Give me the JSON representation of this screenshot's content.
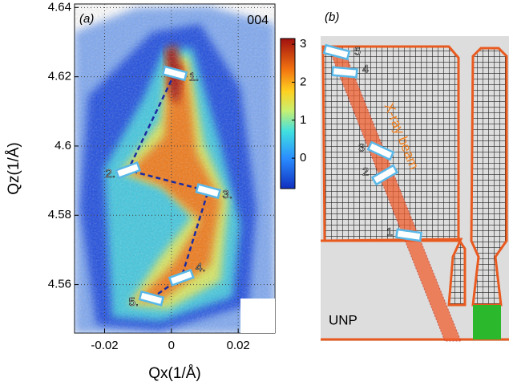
{
  "chart_data": {
    "type": "heatmap",
    "panel_label": "(a)",
    "reflection": "004",
    "xlabel": "Qx(1/Å)",
    "ylabel": "Qz(1/Å)",
    "xlim": [
      -0.029,
      0.031
    ],
    "ylim": [
      4.546,
      4.641
    ],
    "xticks": [
      -0.02,
      0,
      0.02
    ],
    "yticks": [
      4.56,
      4.58,
      4.6,
      4.62,
      4.64
    ],
    "grid": true,
    "colorbar": {
      "lim": [
        -0.8,
        3.15
      ],
      "ticks": [
        0,
        1,
        2,
        3
      ]
    },
    "path": {
      "labels": [
        "1.",
        "2.",
        "3.",
        "4.",
        "5."
      ],
      "x": [
        0.001,
        -0.013,
        0.011,
        0.003,
        -0.006
      ],
      "y": [
        4.621,
        4.593,
        4.587,
        4.562,
        4.556
      ]
    }
  },
  "panel_b": {
    "label": "(b)",
    "beam_label": "X-ray beam",
    "substrate_label": "UNP",
    "markers": [
      "1",
      "2",
      "3",
      "4",
      "5"
    ]
  }
}
